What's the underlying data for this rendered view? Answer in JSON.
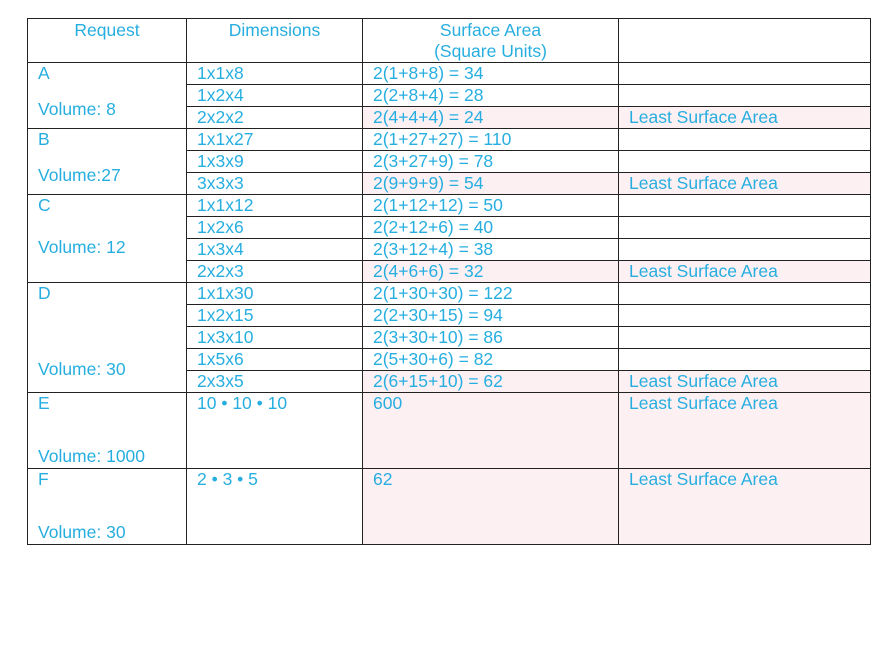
{
  "headers": {
    "request": "Request",
    "dimensions": "Dimensions",
    "surface_area_line1": "Surface Area",
    "surface_area_line2": "(Square Units)",
    "notes": ""
  },
  "groups": [
    {
      "letter": "A",
      "volume": "Volume: 8",
      "rows": [
        {
          "dims": "1x1x8",
          "area": "2(1+8+8) = 34",
          "note": "",
          "highlight": false
        },
        {
          "dims": "1x2x4",
          "area": "2(2+8+4) = 28",
          "note": "",
          "highlight": false
        },
        {
          "dims": "2x2x2",
          "area": "2(4+4+4) = 24",
          "note": "Least Surface Area",
          "highlight": true
        }
      ]
    },
    {
      "letter": "B",
      "volume": "Volume:27",
      "rows": [
        {
          "dims": "1x1x27",
          "area": "2(1+27+27) = 110",
          "note": "",
          "highlight": false
        },
        {
          "dims": "1x3x9",
          "area": "2(3+27+9) = 78",
          "note": "",
          "highlight": false
        },
        {
          "dims": "3x3x3",
          "area": "2(9+9+9) = 54",
          "note": "Least Surface Area",
          "highlight": true
        }
      ]
    },
    {
      "letter": "C",
      "volume": "Volume: 12",
      "rows": [
        {
          "dims": "1x1x12",
          "area": "2(1+12+12) = 50",
          "note": "",
          "highlight": false
        },
        {
          "dims": "1x2x6",
          "area": "2(2+12+6) = 40",
          "note": "",
          "highlight": false
        },
        {
          "dims": "1x3x4",
          "area": "2(3+12+4) = 38",
          "note": "",
          "highlight": false
        },
        {
          "dims": "2x2x3",
          "area": "2(4+6+6) = 32",
          "note": "Least Surface Area",
          "highlight": true
        }
      ]
    },
    {
      "letter": "D",
      "volume": "Volume: 30",
      "rows": [
        {
          "dims": "1x1x30",
          "area": "2(1+30+30) = 122",
          "note": "",
          "highlight": false
        },
        {
          "dims": "1x2x15",
          "area": "2(2+30+15) = 94",
          "note": "",
          "highlight": false
        },
        {
          "dims": "1x3x10",
          "area": "2(3+30+10) = 86",
          "note": "",
          "highlight": false
        },
        {
          "dims": "1x5x6",
          "area": "2(5+30+6) = 82",
          "note": "",
          "highlight": false
        },
        {
          "dims": "2x3x5",
          "area": "2(6+15+10) = 62",
          "note": "Least Surface Area",
          "highlight": true
        }
      ]
    },
    {
      "letter": "E",
      "volume": "Volume: 1000",
      "tall": true,
      "rows": [
        {
          "dims": "10 • 10 • 10",
          "area": "600",
          "note": "Least Surface Area",
          "highlight": true
        }
      ]
    },
    {
      "letter": "F",
      "volume": "Volume: 30",
      "tall": true,
      "rows": [
        {
          "dims": "2 • 3 • 5",
          "area": "62",
          "note": "Least Surface Area",
          "highlight": true
        }
      ]
    }
  ]
}
